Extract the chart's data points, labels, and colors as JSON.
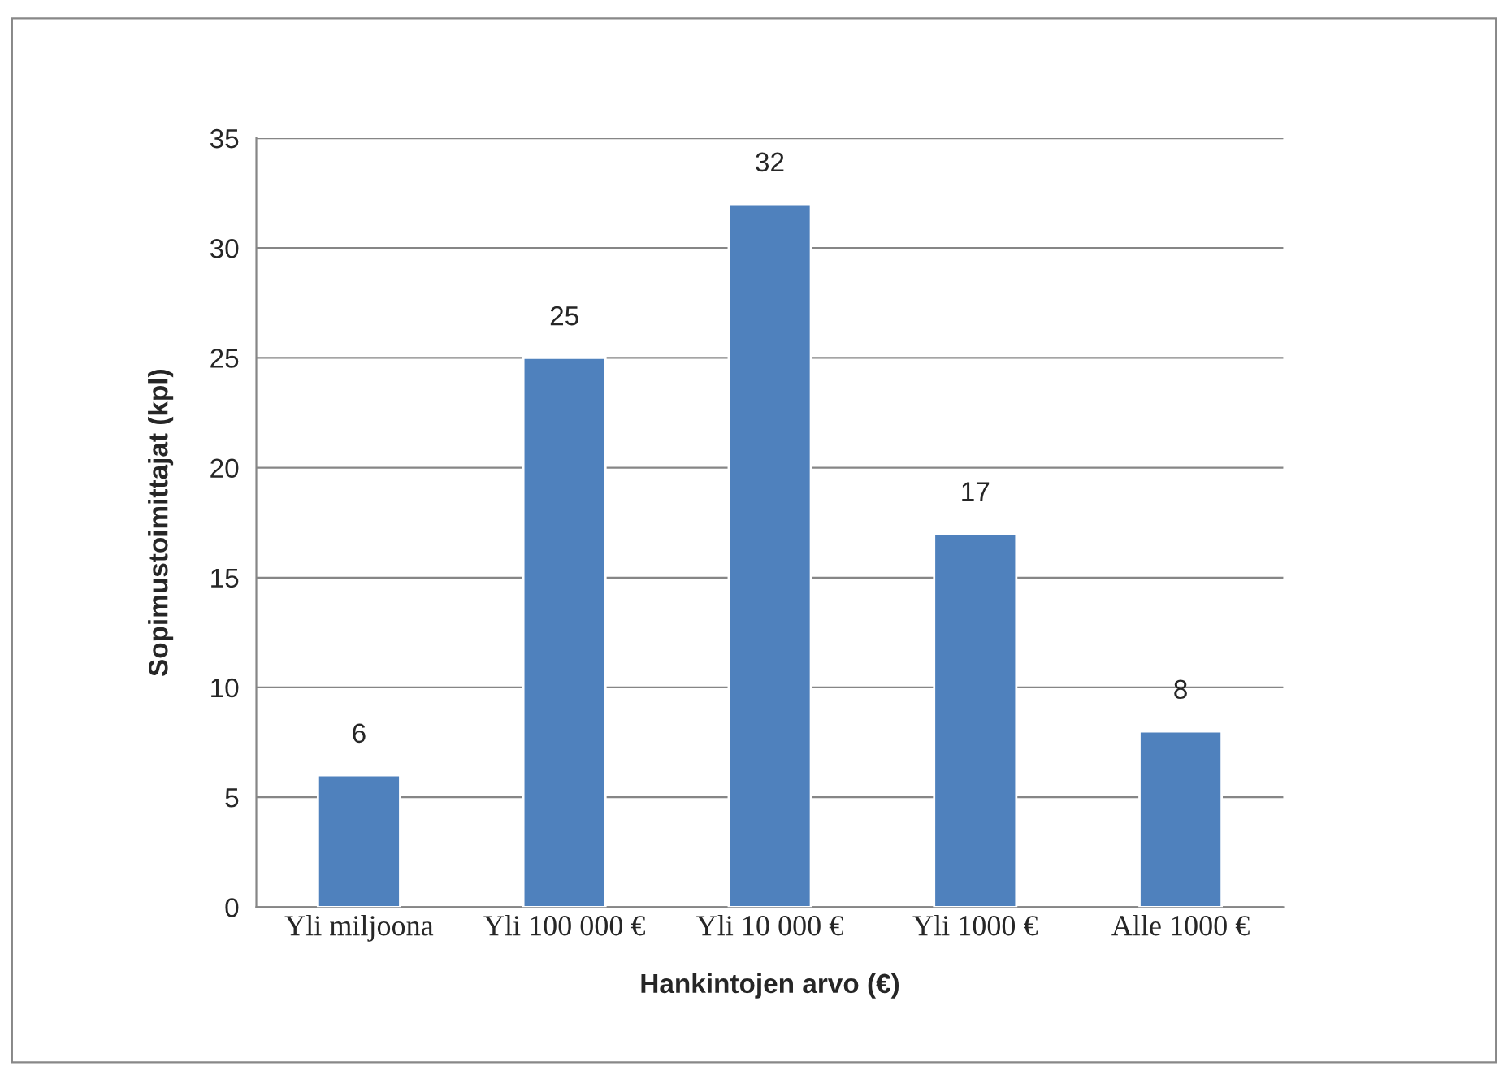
{
  "chart_data": {
    "type": "bar",
    "xlabel": "Hankintojen arvo (€)",
    "ylabel": "Sopimustoimittajat (kpl)",
    "categories": [
      "Yli miljoona",
      "Yli 100 000 €",
      "Yli 10 000 €",
      "Yli 1000 €",
      "Alle 1000 €"
    ],
    "values": [
      6,
      25,
      32,
      17,
      8
    ],
    "color": "#4f81bd",
    "ylim": [
      0,
      35
    ],
    "yticks": [
      0,
      5,
      10,
      15,
      20,
      25,
      30,
      35
    ],
    "grid": "y",
    "data_labels": true,
    "legend": false
  }
}
